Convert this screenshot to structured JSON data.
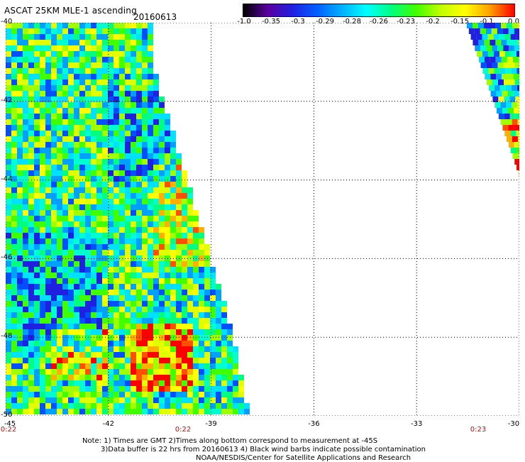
{
  "header": {
    "title": "ASCAT 25KM MLE-1 ascending",
    "date": "20160613"
  },
  "colorbar": {
    "tick_labels": [
      "-1.0",
      "-0.35",
      "-0.3",
      "-0.29",
      "-0.28",
      "-0.26",
      "-0.23",
      "-0.2",
      "-0.15",
      "-0.1",
      "0.0"
    ],
    "colors": [
      "#000000",
      "#5a00a0",
      "#2020e0",
      "#0060ff",
      "#00b0ff",
      "#00ffff",
      "#00ff80",
      "#40ff00",
      "#c0ff00",
      "#ffff00",
      "#ffa000",
      "#ff0000"
    ]
  },
  "map": {
    "x_tick_labels": [
      "-45",
      "-42",
      "-39",
      "-36",
      "-33",
      "-30"
    ],
    "y_tick_labels": [
      "-40",
      "-42",
      "-44",
      "-46",
      "-48",
      "-50"
    ],
    "time_labels": [
      "0:22",
      "0:22",
      "0:23"
    ],
    "lon_range": [
      -45,
      -30
    ],
    "lat_range": [
      -50,
      -40
    ],
    "grid": true
  },
  "footer": {
    "line1": "Note: 1) Times are GMT 2)Times along bottom correspond to measurement at -45S",
    "line2": "3)Data buffer is 22 hrs from 20160613 4) Black wind barbs indicate possible contamination",
    "line3": "NOAA/NESDIS/Center for Satellite Applications and Research"
  }
}
